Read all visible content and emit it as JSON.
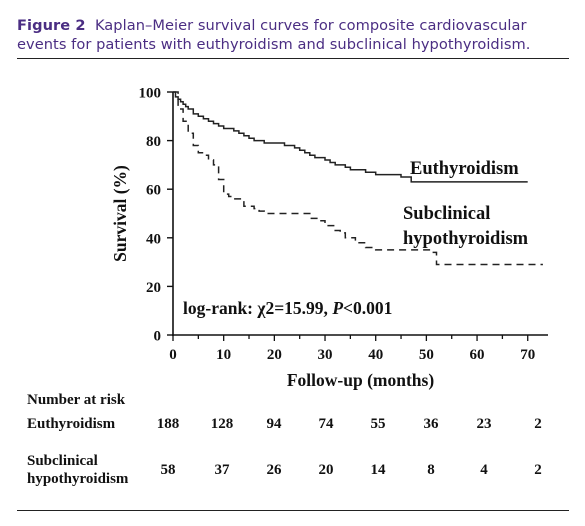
{
  "caption": {
    "label": "Figure 2",
    "text": "Kaplan–Meier survival curves for composite cardiovascular events for patients with euthyroidism and subclinical hypothyroidism."
  },
  "chart_data": {
    "type": "line",
    "xlabel": "Follow-up (months)",
    "ylabel": "Survival (%)",
    "xlim": [
      0,
      74
    ],
    "ylim": [
      0,
      100
    ],
    "xticks": [
      0,
      10,
      20,
      30,
      40,
      50,
      60,
      70
    ],
    "yticks": [
      0,
      20,
      40,
      60,
      80,
      100
    ],
    "annotation": "log-rank: χ2=15.99, P<0.001",
    "annotation_parts": [
      "log-rank: χ2=15.99, ",
      "P",
      "<0.001"
    ],
    "series": [
      {
        "name": "Euthyroidism",
        "style": "solid",
        "x": [
          0,
          0.5,
          1,
          1.5,
          2,
          2.5,
          3,
          4,
          5,
          6,
          7,
          8,
          9,
          10,
          11,
          12,
          13,
          14,
          15,
          16,
          17,
          18,
          20,
          22,
          24,
          25,
          26,
          27,
          28,
          30,
          31,
          32,
          34,
          35,
          36,
          38,
          40,
          43,
          45,
          47,
          50,
          52,
          55,
          60,
          65,
          70
        ],
        "y": [
          100,
          98,
          97,
          96,
          95,
          94,
          93,
          91,
          90,
          89,
          88,
          87,
          86,
          85,
          85,
          84,
          83,
          82,
          81,
          80,
          80,
          79,
          79,
          78,
          77,
          76,
          75,
          74,
          73,
          72,
          71,
          70,
          69,
          68,
          68,
          67,
          66,
          66,
          65,
          63,
          63,
          63,
          63,
          63,
          63,
          63
        ]
      },
      {
        "name": "Subclinical hypothyroidism",
        "label_lines": [
          "Subclinical",
          "hypothyroidism"
        ],
        "style": "dashed",
        "x": [
          0,
          1,
          2,
          3,
          4,
          5,
          6,
          7,
          8,
          9,
          10,
          11,
          12,
          14,
          16,
          17,
          18,
          21,
          24,
          27,
          29,
          30,
          32,
          33,
          34,
          36,
          38,
          40,
          45,
          50,
          51,
          52,
          60,
          70,
          73
        ],
        "y": [
          100,
          93,
          88,
          83,
          78,
          75,
          74,
          72,
          70,
          64,
          58,
          57,
          56,
          53,
          52,
          51,
          50,
          50,
          50,
          48,
          47,
          45,
          43,
          42,
          40,
          38,
          36,
          35,
          35,
          35,
          34,
          29,
          29,
          29,
          29
        ]
      }
    ],
    "risk_table": {
      "title": "Number at risk",
      "times": [
        0,
        10,
        20,
        30,
        40,
        50,
        60,
        70
      ],
      "rows": [
        {
          "lines": [
            "Euthyroidism"
          ],
          "values": [
            188,
            128,
            94,
            74,
            55,
            36,
            23,
            2
          ]
        },
        {
          "lines": [
            "Subclinical",
            "hypothyroidism"
          ],
          "values": [
            58,
            37,
            26,
            20,
            14,
            8,
            4,
            2
          ]
        }
      ]
    }
  }
}
